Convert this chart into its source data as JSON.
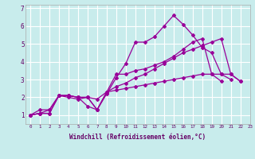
{
  "xlabel": "Windchill (Refroidissement éolien,°C)",
  "background_color": "#c8ecec",
  "line_color": "#990099",
  "grid_color": "#ffffff",
  "text_color": "#660066",
  "xlim": [
    -0.5,
    23
  ],
  "ylim": [
    0.5,
    7.2
  ],
  "xtick_labels": [
    "0",
    "1",
    "2",
    "3",
    "4",
    "5",
    "6",
    "7",
    "8",
    "9",
    "10",
    "11",
    "12",
    "13",
    "14",
    "15",
    "16",
    "17",
    "18",
    "19",
    "20",
    "21",
    "22",
    "23"
  ],
  "ytick_labels": [
    "1",
    "2",
    "3",
    "4",
    "5",
    "6",
    "7"
  ],
  "series": [
    [
      1.0,
      1.1,
      1.1,
      2.1,
      2.1,
      2.0,
      1.5,
      1.3,
      2.2,
      3.1,
      3.9,
      5.1,
      5.1,
      5.4,
      6.0,
      6.6,
      6.1,
      5.5,
      4.8,
      4.5,
      3.3,
      3.0
    ],
    [
      1.0,
      1.1,
      1.1,
      2.1,
      2.0,
      1.9,
      2.0,
      1.9,
      2.3,
      2.6,
      2.8,
      3.1,
      3.3,
      3.6,
      3.9,
      4.2,
      4.5,
      4.7,
      4.9,
      5.1,
      5.3,
      3.3,
      2.9
    ],
    [
      1.0,
      1.3,
      1.3,
      2.1,
      2.1,
      2.0,
      2.0,
      1.3,
      2.3,
      3.3,
      3.3,
      3.5,
      3.6,
      3.8,
      4.0,
      4.3,
      4.7,
      5.1,
      5.3,
      3.3,
      2.9
    ],
    [
      1.0,
      1.1,
      1.3,
      2.1,
      2.1,
      2.0,
      2.0,
      1.3,
      2.3,
      2.4,
      2.5,
      2.6,
      2.7,
      2.8,
      2.9,
      3.0,
      3.1,
      3.2,
      3.3,
      3.3,
      3.3,
      3.3,
      2.9
    ]
  ],
  "series_x": [
    [
      0,
      1,
      2,
      3,
      4,
      5,
      6,
      7,
      8,
      9,
      10,
      11,
      12,
      13,
      14,
      15,
      16,
      17,
      18,
      19,
      20,
      21
    ],
    [
      0,
      1,
      2,
      3,
      4,
      5,
      6,
      7,
      8,
      9,
      10,
      11,
      12,
      13,
      14,
      15,
      16,
      17,
      18,
      19,
      20,
      21,
      22
    ],
    [
      0,
      1,
      2,
      3,
      4,
      5,
      6,
      7,
      8,
      9,
      10,
      11,
      12,
      13,
      14,
      15,
      16,
      17,
      18,
      19,
      20
    ],
    [
      0,
      1,
      2,
      3,
      4,
      5,
      6,
      7,
      8,
      9,
      10,
      11,
      12,
      13,
      14,
      15,
      16,
      17,
      18,
      19,
      20,
      21,
      22
    ]
  ],
  "ylabel_visible": false,
  "spine_color": "#aaaaaa",
  "marker_size": 2.0,
  "line_width": 0.9,
  "xlabel_fontsize": 5.5,
  "xtick_fontsize": 4.2,
  "ytick_fontsize": 5.5
}
